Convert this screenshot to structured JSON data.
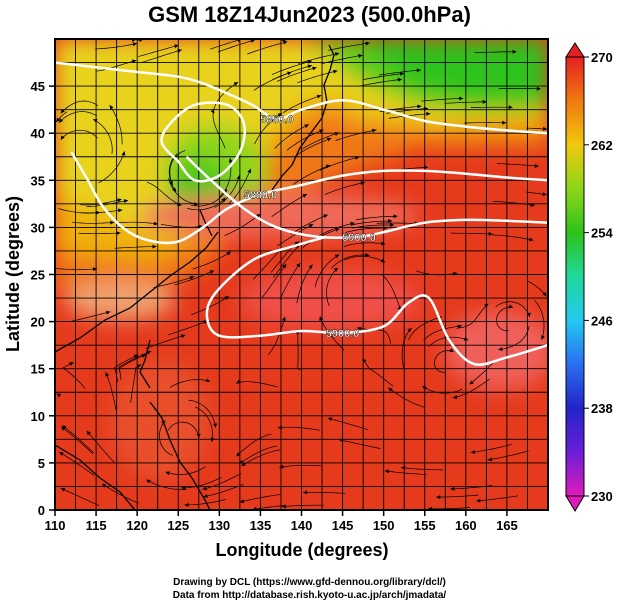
{
  "title": "GSM 18Z14Jun2023 (500.0hPa)",
  "axes": {
    "x": {
      "label": "Longitude (degrees)",
      "ticks": [
        110,
        115,
        120,
        125,
        130,
        135,
        140,
        145,
        150,
        155,
        160,
        165
      ],
      "range": [
        110,
        170
      ]
    },
    "y": {
      "label": "Latitude  (degrees)",
      "ticks": [
        0,
        5,
        10,
        15,
        20,
        25,
        30,
        35,
        40,
        45
      ],
      "range": [
        0,
        50
      ]
    }
  },
  "colorbar": {
    "ticks": [
      "270",
      "262",
      "254",
      "246",
      "238",
      "230"
    ],
    "range": [
      230,
      270
    ],
    "stops": [
      {
        "v": 230,
        "c": "#e01bb8"
      },
      {
        "v": 234,
        "c": "#6a1fd8"
      },
      {
        "v": 238,
        "c": "#2224c8"
      },
      {
        "v": 242,
        "c": "#2a6ff0"
      },
      {
        "v": 246,
        "c": "#24c8f0"
      },
      {
        "v": 250,
        "c": "#20d89a"
      },
      {
        "v": 254,
        "c": "#2ec21a"
      },
      {
        "v": 258,
        "c": "#8ed61a"
      },
      {
        "v": 262,
        "c": "#f0c80e"
      },
      {
        "v": 266,
        "c": "#f07a10"
      },
      {
        "v": 270,
        "c": "#e52020"
      }
    ]
  },
  "contours": [
    {
      "label": "5850.0",
      "points": [
        [
          110,
          47.5
        ],
        [
          115,
          47
        ],
        [
          120,
          46.5
        ],
        [
          125,
          46
        ],
        [
          128,
          45.3
        ],
        [
          131,
          44.2
        ],
        [
          134,
          43
        ],
        [
          137,
          41.5
        ],
        [
          140,
          42.5
        ],
        [
          145,
          43.5
        ],
        [
          150,
          42.5
        ],
        [
          155,
          41.3
        ],
        [
          160,
          40.7
        ],
        [
          165,
          40.3
        ],
        [
          170,
          40
        ]
      ]
    },
    {
      "label": "5880.0",
      "points": [
        [
          112,
          38
        ],
        [
          114,
          35
        ],
        [
          116,
          32
        ],
        [
          119,
          29.5
        ],
        [
          122,
          28.5
        ],
        [
          125,
          28.5
        ],
        [
          128,
          30
        ],
        [
          131,
          32
        ],
        [
          135,
          33.5
        ],
        [
          140,
          34.5
        ],
        [
          145,
          35.5
        ],
        [
          150,
          36
        ],
        [
          155,
          36
        ],
        [
          160,
          35.7
        ],
        [
          165,
          35.3
        ],
        [
          170,
          35
        ]
      ]
    },
    {
      "label": "5900.0",
      "points": [
        [
          126,
          37.5
        ],
        [
          129,
          35
        ],
        [
          133,
          32
        ],
        [
          137,
          30
        ],
        [
          142,
          29
        ],
        [
          147,
          29
        ],
        [
          150,
          29.5
        ],
        [
          155,
          30.5
        ],
        [
          160,
          30.8
        ],
        [
          165,
          30.7
        ],
        [
          170,
          30.5
        ]
      ]
    },
    {
      "label": "5900.0",
      "points": [
        [
          143,
          29
        ],
        [
          139,
          28
        ],
        [
          134,
          26.5
        ],
        [
          129.5,
          23
        ],
        [
          128.5,
          20.5
        ],
        [
          130,
          18.5
        ],
        [
          135,
          18.5
        ],
        [
          140,
          19
        ],
        [
          145,
          18.8
        ],
        [
          150,
          19.5
        ],
        [
          153,
          22
        ],
        [
          155.5,
          22.5
        ],
        [
          158,
          18
        ],
        [
          161,
          15.5
        ],
        [
          165,
          16.2
        ],
        [
          170,
          17.5
        ]
      ]
    }
  ],
  "low_contour": {
    "points": [
      [
        125,
        37
      ],
      [
        123,
        39
      ],
      [
        124,
        41
      ],
      [
        127,
        43
      ],
      [
        131,
        43
      ],
      [
        133,
        41
      ],
      [
        132.5,
        38
      ],
      [
        130,
        35.5
      ],
      [
        127,
        35
      ],
      [
        125,
        37
      ]
    ]
  },
  "credits": [
    "Drawing by DCL (https://www.gfd-dennou.org/library/dcl/)",
    "Data from http://database.rish.kyoto-u.ac.jp/arch/jmadata/"
  ]
}
